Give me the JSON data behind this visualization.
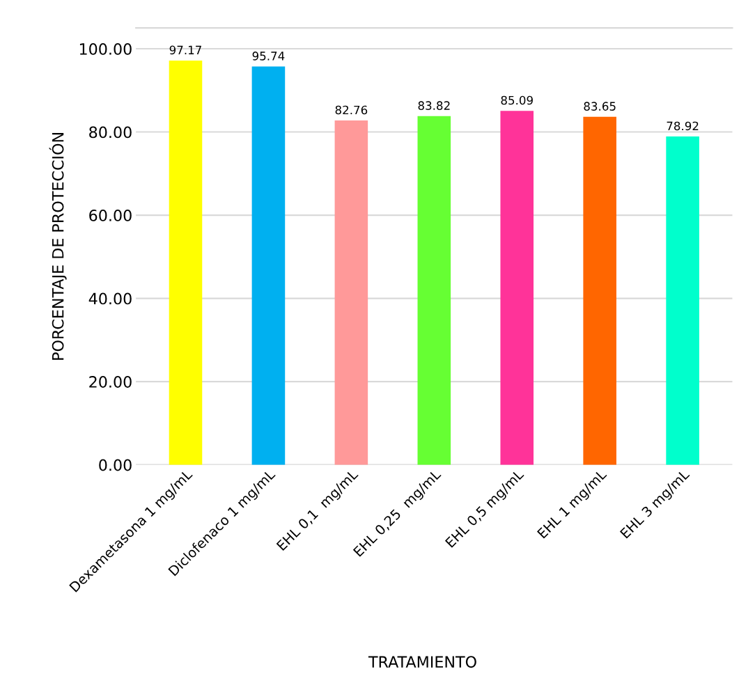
{
  "chart_data": {
    "type": "bar",
    "xlabel": "TRATAMIENTO",
    "ylabel": "PORCENTAJE DE PROTECCIÓN",
    "categories": [
      "Dexametasona 1 mg/mL",
      "Diclofenaco 1 mg/mL",
      "EHL 0,1  mg/mL",
      "EHL 0,25  mg/mL",
      "EHL 0,5 mg/mL",
      "EHL 1 mg/mL",
      "EHL 3 mg/mL"
    ],
    "values": [
      97.17,
      95.74,
      82.76,
      83.82,
      85.09,
      83.65,
      78.92
    ],
    "colors": [
      "#ffff00",
      "#00b0f0",
      "#ff9999",
      "#66ff33",
      "#ff3399",
      "#ff6600",
      "#00ffcc"
    ],
    "ylim": [
      0,
      105
    ],
    "yticks": [
      {
        "value": 0,
        "label": "0.00"
      },
      {
        "value": 20,
        "label": "20.00"
      },
      {
        "value": 40,
        "label": "40.00"
      },
      {
        "value": 60,
        "label": "60.00"
      },
      {
        "value": 80,
        "label": "80.00"
      },
      {
        "value": 100,
        "label": "100.00"
      }
    ],
    "grid": "y",
    "data_labels": true
  }
}
